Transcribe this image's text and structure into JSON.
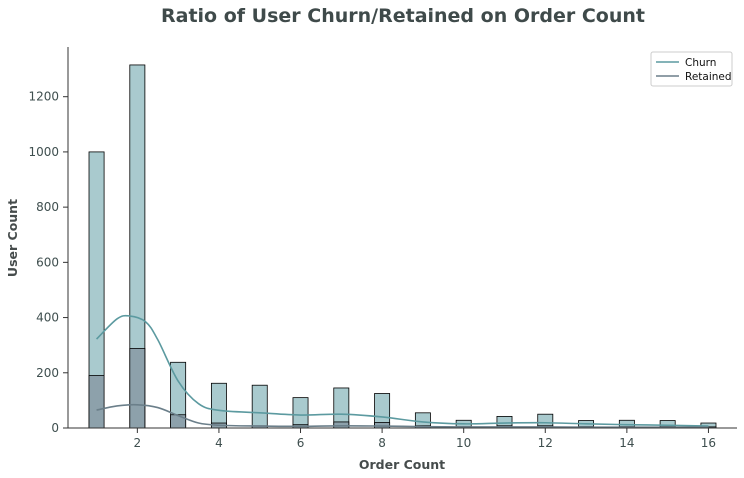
{
  "chart_data": {
    "type": "bar",
    "title": "Ratio of User Churn/Retained on Order Count",
    "xlabel": "Order Count",
    "ylabel": "User Count",
    "xlim": [
      0.3,
      16.7
    ],
    "ylim": [
      0,
      1380
    ],
    "xticks": [
      2,
      4,
      6,
      8,
      10,
      12,
      14,
      16
    ],
    "yticks": [
      0,
      200,
      400,
      600,
      800,
      1000,
      1200
    ],
    "bin_width": 0.37,
    "grid": false,
    "legend_position": "top-right",
    "series": [
      {
        "name": "Churn",
        "color": "#a9cace",
        "line_color": "#5c9aa0",
        "bins": [
          {
            "x": 1,
            "value": 1000
          },
          {
            "x": 2,
            "value": 1315
          },
          {
            "x": 3,
            "value": 238
          },
          {
            "x": 4,
            "value": 162
          },
          {
            "x": 5,
            "value": 155
          },
          {
            "x": 6,
            "value": 110
          },
          {
            "x": 7,
            "value": 145
          },
          {
            "x": 8,
            "value": 125
          },
          {
            "x": 9,
            "value": 55
          },
          {
            "x": 10,
            "value": 28
          },
          {
            "x": 11,
            "value": 42
          },
          {
            "x": 12,
            "value": 50
          },
          {
            "x": 13,
            "value": 27
          },
          {
            "x": 14,
            "value": 28
          },
          {
            "x": 15,
            "value": 27
          },
          {
            "x": 16,
            "value": 18
          }
        ],
        "kde": [
          [
            1,
            322
          ],
          [
            1.5,
            395
          ],
          [
            1.8,
            406
          ],
          [
            2.2,
            385
          ],
          [
            2.5,
            320
          ],
          [
            3,
            170
          ],
          [
            3.5,
            88
          ],
          [
            4,
            64
          ],
          [
            5,
            55
          ],
          [
            6,
            47
          ],
          [
            7,
            50
          ],
          [
            8,
            40
          ],
          [
            9,
            22
          ],
          [
            10,
            15
          ],
          [
            11,
            18
          ],
          [
            12,
            19
          ],
          [
            13,
            15
          ],
          [
            14,
            12
          ],
          [
            15,
            10
          ],
          [
            16,
            7
          ]
        ]
      },
      {
        "name": "Retained",
        "color": "#8da1ab",
        "line_color": "#6b7f8a",
        "bins": [
          {
            "x": 1,
            "value": 190
          },
          {
            "x": 2,
            "value": 288
          },
          {
            "x": 3,
            "value": 48
          },
          {
            "x": 4,
            "value": 18
          },
          {
            "x": 5,
            "value": 8
          },
          {
            "x": 6,
            "value": 12
          },
          {
            "x": 7,
            "value": 22
          },
          {
            "x": 8,
            "value": 20
          },
          {
            "x": 9,
            "value": 8
          },
          {
            "x": 10,
            "value": 5
          },
          {
            "x": 11,
            "value": 8
          },
          {
            "x": 12,
            "value": 8
          },
          {
            "x": 13,
            "value": 5
          },
          {
            "x": 14,
            "value": 5
          },
          {
            "x": 15,
            "value": 5
          },
          {
            "x": 16,
            "value": 4
          }
        ],
        "kde": [
          [
            1,
            65
          ],
          [
            1.5,
            80
          ],
          [
            2,
            84
          ],
          [
            2.5,
            74
          ],
          [
            3,
            45
          ],
          [
            3.5,
            18
          ],
          [
            4,
            10
          ],
          [
            5,
            7
          ],
          [
            6,
            6
          ],
          [
            7,
            8
          ],
          [
            8,
            7
          ],
          [
            9,
            5
          ],
          [
            10,
            4
          ],
          [
            11,
            4
          ],
          [
            12,
            4
          ],
          [
            13,
            3
          ],
          [
            14,
            3
          ],
          [
            15,
            3
          ],
          [
            16,
            3
          ]
        ]
      }
    ]
  }
}
